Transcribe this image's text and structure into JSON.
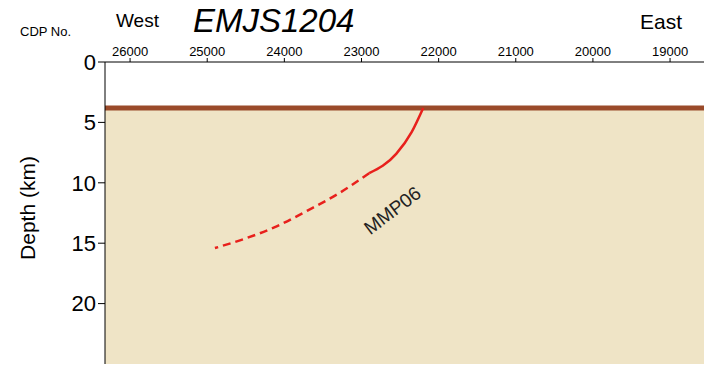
{
  "chart_data": {
    "type": "line",
    "title": "EMJS1204",
    "left_label": "West",
    "right_label": "East",
    "x_label": "CDP No.",
    "y_label": "Depth (km)",
    "annotation": "MMP06",
    "xlim": [
      26325,
      18560
    ],
    "xticks": [
      26000,
      25000,
      24000,
      23000,
      22000,
      21000,
      20000,
      19000
    ],
    "ylim": [
      0,
      25
    ],
    "yticks": [
      0,
      5,
      10,
      15,
      20
    ],
    "seafloor": 3.8,
    "grid": false,
    "series": [
      {
        "color": "#9a4a2a",
        "line_style": "solid",
        "x": [
          26325,
          18560
        ],
        "values": [
          3.8,
          3.8
        ]
      },
      {
        "color": "#e8201c",
        "line_style": "solid",
        "x": [
          22200,
          22350,
          22550,
          22900
        ],
        "values": [
          3.8,
          5.8,
          7.6,
          9.2
        ]
      },
      {
        "color": "#e8201c",
        "line_style": "dashed",
        "x": [
          22900,
          23300,
          23700,
          24100,
          24500,
          24900
        ],
        "values": [
          9.2,
          10.9,
          12.3,
          13.6,
          14.6,
          15.4
        ]
      }
    ]
  }
}
